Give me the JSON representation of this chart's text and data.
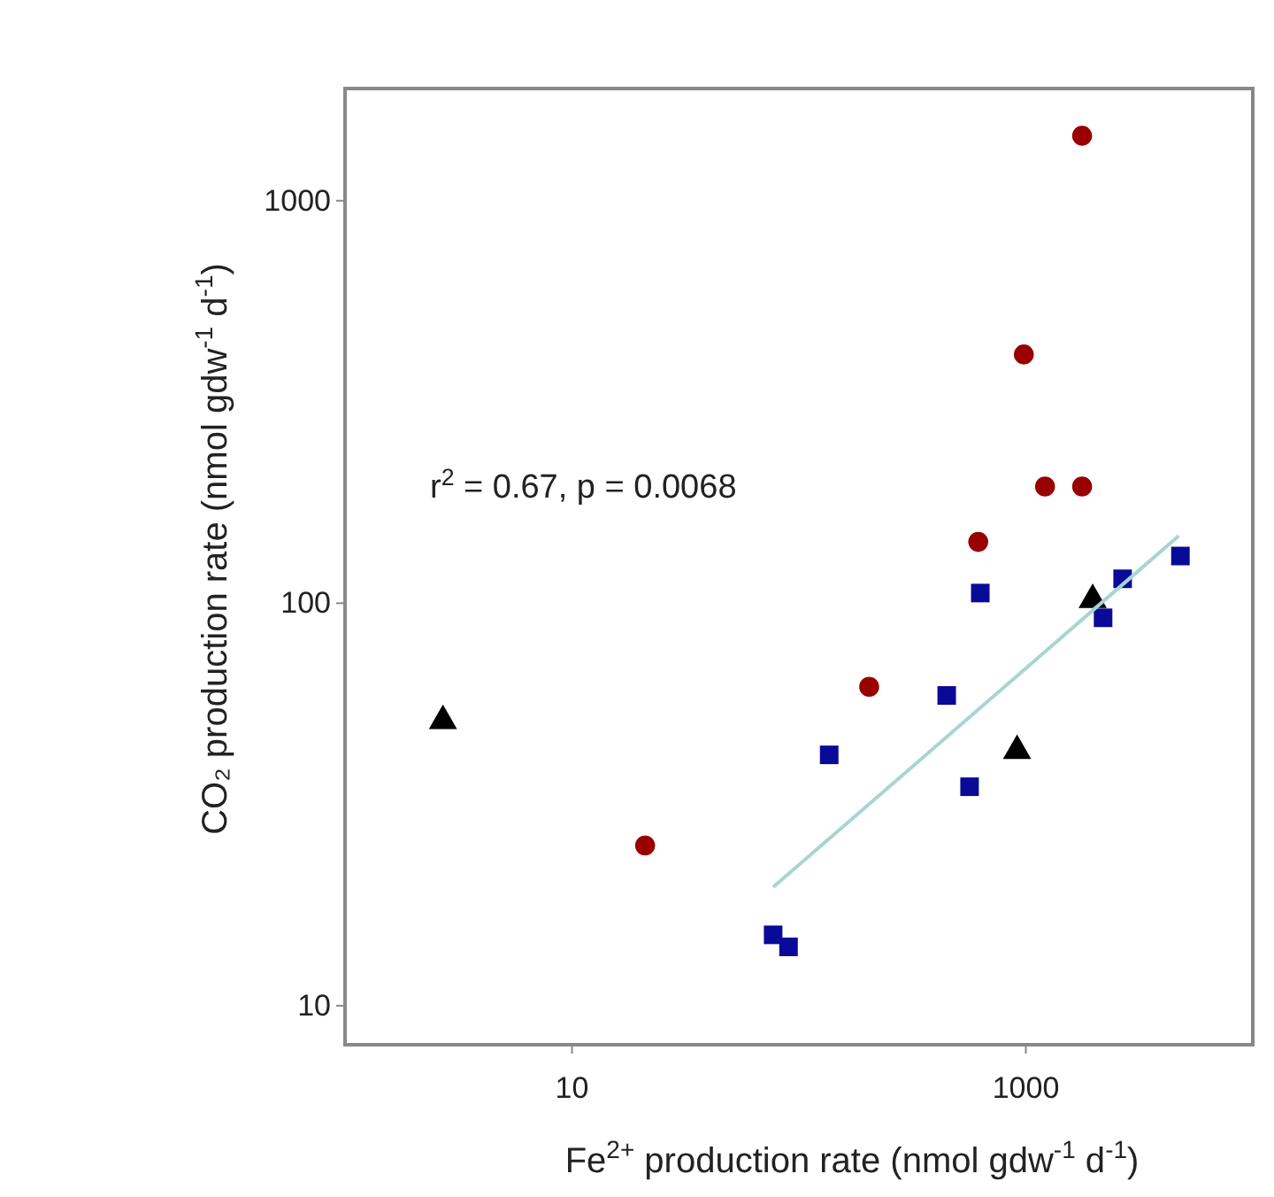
{
  "chart_data": {
    "type": "scatter",
    "xlabel": "Fe$^{2+}$ production rate (nmol gdw$^{-1}$ d$^{-1}$)",
    "ylabel": "CO₂ production rate (nmol gdw$^{-1}$ d$^{-1}$)",
    "log": "xy",
    "xlim": [
      1,
      10000
    ],
    "ylim": [
      8,
      1900
    ],
    "xticks": [
      10,
      1000
    ],
    "yticks": [
      10,
      100,
      1000
    ],
    "grid": false,
    "annotations": [
      "r$^{2}$ = 0.67,  p = 0.0068"
    ],
    "series": [
      {
        "marker": "circle",
        "color": "#990000",
        "x": [
          1770,
          980,
          1215,
          1770,
          617,
          204,
          21
        ],
        "values": [
          1450,
          415,
          195,
          195,
          142,
          62,
          25
        ]
      },
      {
        "marker": "square",
        "color": "#0a0a99",
        "x": [
          630,
          4800,
          2670,
          2190,
          448,
          136,
          565,
          77,
          90
        ],
        "values": [
          106,
          131,
          115,
          92,
          59,
          42,
          35,
          15,
          14
        ]
      },
      {
        "marker": "triangle",
        "color": "#000000",
        "x": [
          2.7,
          915,
          1970
        ],
        "values": [
          51,
          43,
          102
        ]
      },
      {
        "type": "line",
        "marker": "none",
        "line_style": "solid",
        "color": "#a8d5d0",
        "x": [
          77,
          4720
        ],
        "values": [
          19.7,
          147
        ]
      }
    ]
  }
}
